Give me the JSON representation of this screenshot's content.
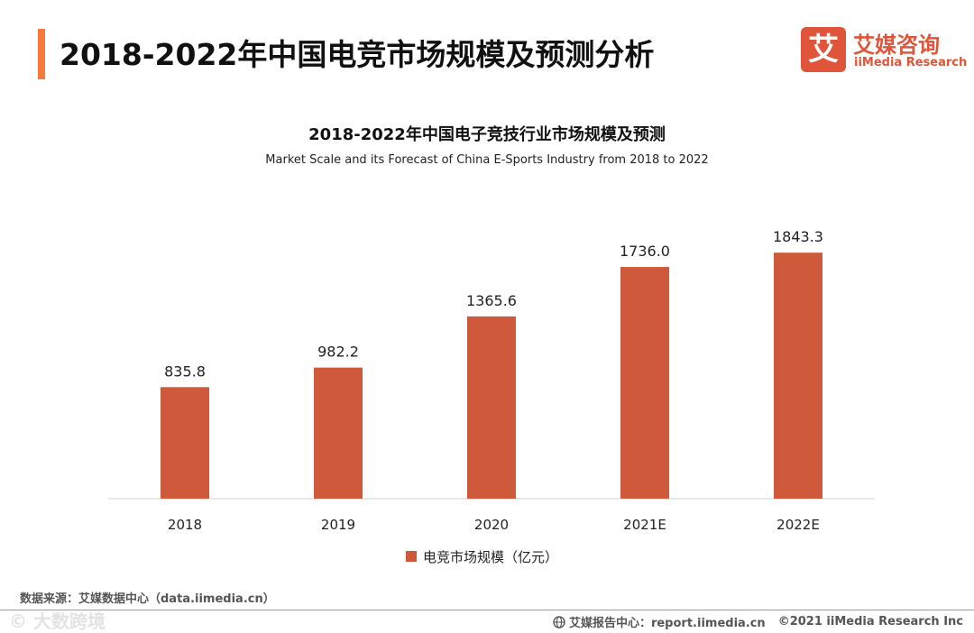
{
  "colors": {
    "accent": "#f4793b",
    "bar": "#cf5a3b",
    "brand": "#e0553a"
  },
  "header": {
    "title": "2018-2022年中国电竞市场规模及预测分析"
  },
  "logo": {
    "mark": "艾",
    "name_cn": "艾媒咨询",
    "name_en": "iiMedia Research",
    "icon": "ai-logo-icon"
  },
  "chart_data": {
    "type": "bar",
    "title": "2018-2022年中国电子竞技行业市场规模及预测",
    "subtitle": "Market Scale and its Forecast of China E-Sports Industry from 2018 to 2022",
    "categories": [
      "2018",
      "2019",
      "2020",
      "2021E",
      "2022E"
    ],
    "series": [
      {
        "name": "电竞市场规模（亿元）",
        "values": [
          835.8,
          982.2,
          1365.6,
          1736.0,
          1843.3
        ],
        "labels": [
          "835.8",
          "982.2",
          "1365.6",
          "1736.0",
          "1843.3"
        ]
      }
    ],
    "ylim": [
      0,
      2000
    ],
    "grid": false,
    "legend_position": "bottom-center",
    "xlabel": "",
    "ylabel": ""
  },
  "source": {
    "text": "数据来源：艾媒数据中心（data.iimedia.cn）"
  },
  "watermark": {
    "text": "© 大数跨境"
  },
  "footer": {
    "icon": "globe-icon",
    "report_text": "艾媒报告中心：report.iimedia.cn",
    "copyright": "©2021  iiMedia Research  Inc"
  }
}
